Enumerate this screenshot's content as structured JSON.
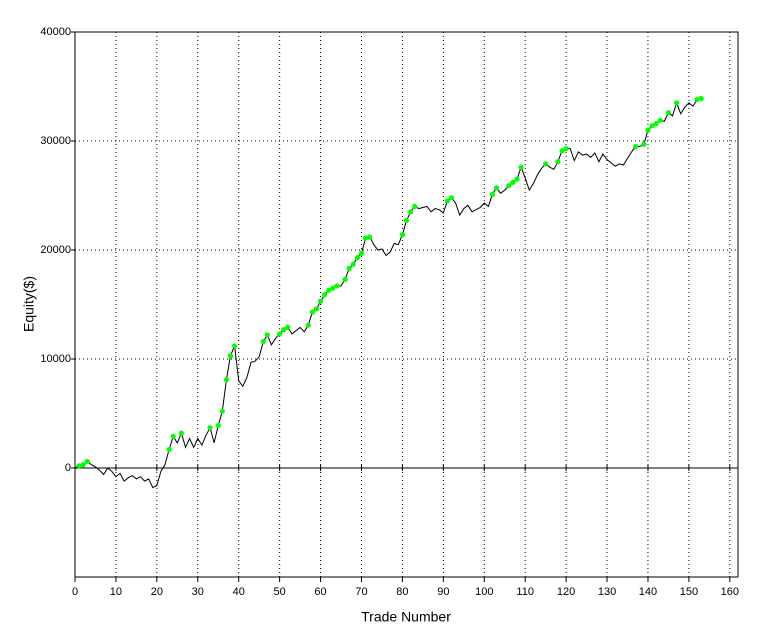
{
  "chart_data": {
    "type": "line",
    "xlabel": "Trade Number",
    "ylabel": "Equity($)",
    "xlim": [
      0,
      162
    ],
    "xticks": [
      0,
      10,
      20,
      30,
      40,
      50,
      60,
      70,
      80,
      90,
      100,
      110,
      120,
      130,
      140,
      150,
      160
    ],
    "ylim": [
      -10000,
      40000
    ],
    "yticks": [
      0,
      10000,
      20000,
      30000,
      40000
    ],
    "grid": true,
    "series": [
      {
        "color": "#000000",
        "marker_color": "#00ff00",
        "x": [
          0,
          1,
          2,
          3,
          4,
          5,
          6,
          7,
          8,
          9,
          10,
          11,
          12,
          13,
          14,
          15,
          16,
          17,
          18,
          19,
          20,
          21,
          22,
          23,
          24,
          25,
          26,
          27,
          28,
          29,
          30,
          31,
          32,
          33,
          34,
          35,
          36,
          37,
          38,
          39,
          40,
          41,
          42,
          43,
          44,
          45,
          46,
          47,
          48,
          49,
          50,
          51,
          52,
          53,
          54,
          55,
          56,
          57,
          58,
          59,
          60,
          61,
          62,
          63,
          64,
          65,
          66,
          67,
          68,
          69,
          70,
          71,
          72,
          73,
          74,
          75,
          76,
          77,
          78,
          79,
          80,
          81,
          82,
          83,
          84,
          85,
          86,
          87,
          88,
          89,
          90,
          91,
          92,
          93,
          94,
          95,
          96,
          97,
          98,
          99,
          100,
          101,
          102,
          103,
          104,
          105,
          106,
          107,
          108,
          109,
          110,
          111,
          112,
          113,
          114,
          115,
          116,
          117,
          118,
          119,
          120,
          121,
          122,
          123,
          124,
          125,
          126,
          127,
          128,
          129,
          130,
          131,
          132,
          133,
          134,
          135,
          136,
          137,
          138,
          139,
          140,
          141,
          142,
          143,
          144,
          145,
          146,
          147,
          148,
          149,
          150,
          151,
          152,
          153
        ],
        "values": [
          0,
          200,
          300,
          600,
          300,
          100,
          -200,
          -600,
          0,
          -300,
          -800,
          -500,
          -1200,
          -900,
          -700,
          -1000,
          -800,
          -1200,
          -1000,
          -1800,
          -1600,
          -300,
          300,
          1700,
          2900,
          2300,
          3200,
          1900,
          2700,
          1900,
          2700,
          2100,
          3000,
          3700,
          2300,
          3900,
          5200,
          8100,
          10300,
          11200,
          8000,
          7500,
          8300,
          9700,
          9800,
          10200,
          11600,
          12200,
          11300,
          11900,
          12300,
          12700,
          12900,
          12300,
          12600,
          12900,
          12500,
          13100,
          14300,
          14600,
          15300,
          15900,
          16300,
          16500,
          16700,
          16700,
          17300,
          18300,
          18700,
          19300,
          19700,
          21100,
          21200,
          20500,
          20000,
          20100,
          19500,
          19800,
          20600,
          20500,
          21400,
          22700,
          23500,
          24000,
          23800,
          23900,
          24000,
          23500,
          23800,
          23700,
          23400,
          24500,
          24800,
          24300,
          23200,
          23800,
          24100,
          23500,
          23700,
          23900,
          24300,
          24000,
          25100,
          25700,
          25200,
          25500,
          25900,
          26200,
          26500,
          27600,
          26600,
          25500,
          26100,
          26900,
          27500,
          27900,
          27600,
          27400,
          28100,
          29100,
          29300,
          29300,
          28200,
          29000,
          28700,
          28800,
          28500,
          28900,
          28100,
          28800,
          28300,
          28000,
          27700,
          27900,
          27800,
          28400,
          29000,
          29500,
          29500,
          29700,
          31000,
          31400,
          31600,
          31900,
          31800,
          32600,
          32300,
          33500,
          32500,
          33100,
          33500,
          33200,
          33800,
          33900
        ]
      }
    ]
  }
}
